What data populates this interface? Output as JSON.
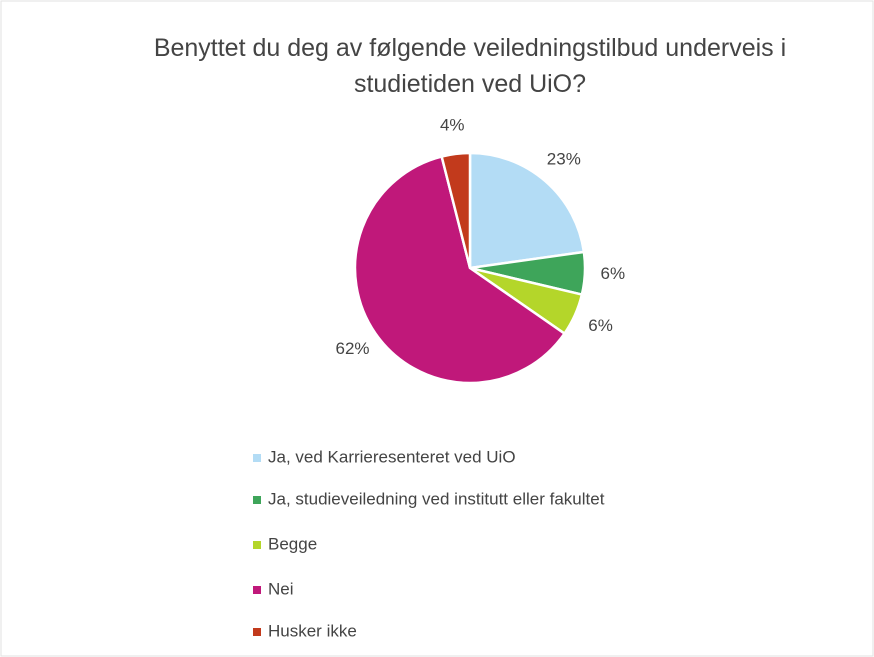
{
  "chart_data": {
    "type": "pie",
    "title": "Benyttet du deg av følgende veiledningstilbud underveis i studietiden ved UiO?",
    "categories": [
      "Ja, ved Karrieresenteret ved UiO",
      "Ja, studieveiledning ved institutt eller fakultet",
      "Begge",
      "Nei",
      "Husker ikke"
    ],
    "values": [
      23,
      6,
      6,
      62,
      4
    ],
    "value_labels": [
      "23%",
      "6%",
      "6%",
      "62%",
      "4%"
    ],
    "colors": [
      "#b3dcf5",
      "#3ea55a",
      "#b4d62a",
      "#c0187a",
      "#c23a1c"
    ],
    "legend": "bottom"
  }
}
